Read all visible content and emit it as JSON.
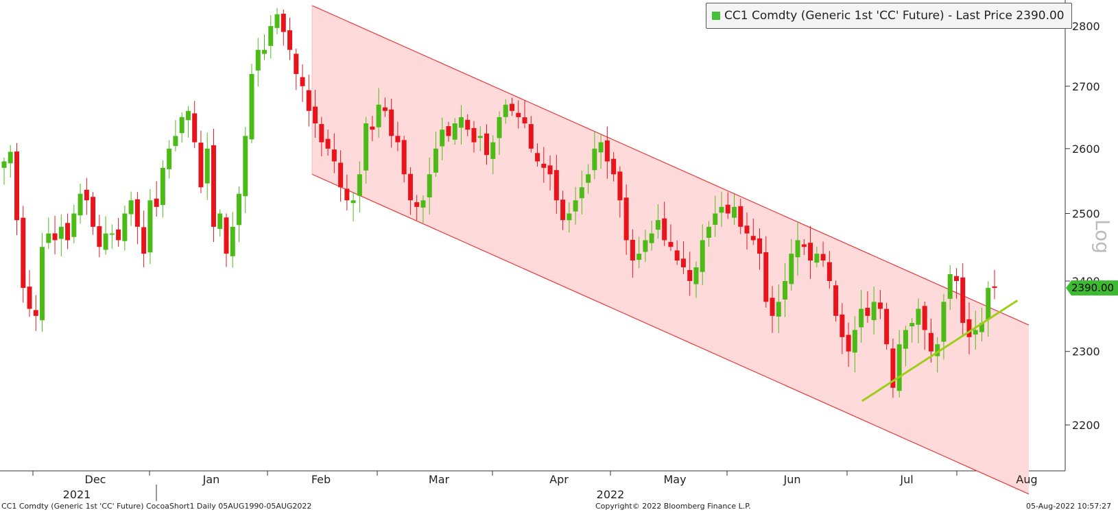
{
  "legend": {
    "label": "CC1 Comdty (Generic 1st 'CC' Future) - Last Price 2390.00",
    "color": "#46c13a"
  },
  "price_tag": {
    "text": "2390.00",
    "color": "#3dbb30"
  },
  "footer": {
    "left": "CC1 Comdty (Generic 1st 'CC' Future) CocoaShort1  Daily 05AUG1990-05AUG2022",
    "center": "Copyright© 2022 Bloomberg Finance L.P.",
    "right": "05-Aug-2022 10:57:27"
  },
  "colors": {
    "up": "#4cbb17",
    "down": "#e8141c",
    "channel_fill": "#ffdada",
    "channel_line": "#e83a3a",
    "trendline": "#9ccf1a"
  },
  "chart_data": {
    "type": "candlestick",
    "scale": "log",
    "ylabel": "Log",
    "ylim": [
      2140,
      2840
    ],
    "yticks": [
      2200,
      2300,
      2400,
      2500,
      2600,
      2700,
      2800
    ],
    "x_month_labels": [
      "Dec",
      "Jan",
      "Feb",
      "Mar",
      "Apr",
      "May",
      "Jun",
      "Jul",
      "Aug"
    ],
    "x_year_labels": [
      "2021",
      "2022"
    ],
    "last_price": 2390.0,
    "channel": {
      "upper": [
        {
          "date": "2022-01-28",
          "price": 2835
        },
        {
          "date": "2022-08-05",
          "price": 2337
        }
      ],
      "lower": [
        {
          "date": "2022-01-28",
          "price": 2560
        },
        {
          "date": "2022-08-05",
          "price": 2110
        }
      ]
    },
    "trendline": [
      {
        "date": "2022-06-22",
        "price": 2232
      },
      {
        "date": "2022-08-02",
        "price": 2372
      }
    ],
    "series": [
      {
        "name": "CC1 Comdty (Generic 1st 'CC' Future)",
        "closes": [
          2580,
          2595,
          2490,
          2390,
          2360,
          2350,
          2450,
          2470,
          2460,
          2480,
          2460,
          2500,
          2530,
          2520,
          2480,
          2450,
          2470,
          2470,
          2460,
          2500,
          2520,
          2480,
          2440,
          2520,
          2510,
          2570,
          2600,
          2620,
          2650,
          2660,
          2610,
          2540,
          2600,
          2480,
          2500,
          2440,
          2480,
          2530,
          2620,
          2720,
          2760,
          2760,
          2800,
          2820,
          2790,
          2760,
          2720,
          2700,
          2660,
          2640,
          2610,
          2600,
          2580,
          2540,
          2520,
          2520,
          2560,
          2640,
          2630,
          2670,
          2660,
          2620,
          2610,
          2560,
          2520,
          2510,
          2520,
          2560,
          2600,
          2630,
          2620,
          2640,
          2650,
          2630,
          2610,
          2620,
          2590,
          2610,
          2650,
          2670,
          2660,
          2650,
          2640,
          2600,
          2580,
          2570,
          2560,
          2520,
          2490,
          2500,
          2520,
          2540,
          2560,
          2600,
          2610,
          2580,
          2560,
          2520,
          2460,
          2430,
          2440,
          2460,
          2470,
          2490,
          2460,
          2450,
          2430,
          2420,
          2400,
          2420,
          2460,
          2480,
          2500,
          2510,
          2500,
          2510,
          2480,
          2470,
          2460,
          2440,
          2370,
          2350,
          2370,
          2400,
          2440,
          2460,
          2450,
          2430,
          2440,
          2430,
          2400,
          2350,
          2320,
          2300,
          2330,
          2360,
          2350,
          2370,
          2360,
          2310,
          2250,
          2310,
          2330,
          2340,
          2360,
          2330,
          2300,
          2310,
          2370,
          2410,
          2400,
          2340,
          2320,
          2330,
          2340,
          2390,
          2390
        ]
      }
    ]
  }
}
